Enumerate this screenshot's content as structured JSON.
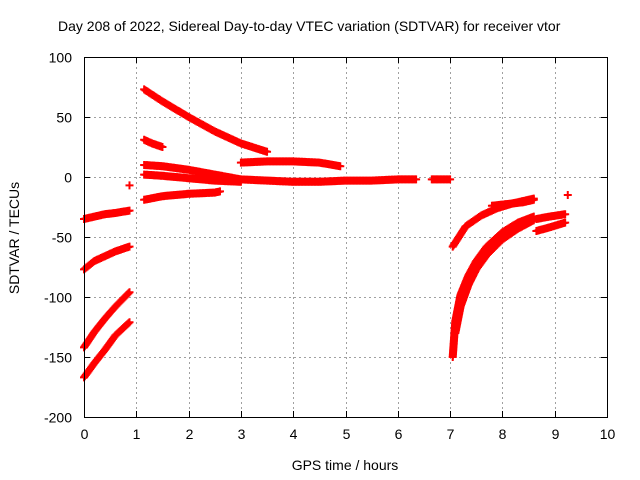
{
  "chart_data": {
    "type": "scatter",
    "title": "Day 208 of 2022, Sidereal Day-to-day VTEC variation (SDTVAR) for receiver vtor",
    "xlabel": "GPS time / hours",
    "ylabel": "SDTVAR / TECUs",
    "xlim": [
      0,
      10
    ],
    "ylim": [
      -200,
      100
    ],
    "xticks": [
      "0",
      "1",
      "2",
      "3",
      "4",
      "5",
      "6",
      "7",
      "8",
      "9",
      "10"
    ],
    "yticks": [
      "100",
      "50",
      "0",
      "-50",
      "-100",
      "-150",
      "-200"
    ],
    "grid": true,
    "marker": "+",
    "color": "#ff0000",
    "series": [
      {
        "x": [
          0.0,
          0.2,
          0.4,
          0.6,
          0.87
        ],
        "y": [
          -35,
          -33,
          -31,
          -30,
          -28
        ]
      },
      {
        "x": [
          0.0,
          0.2,
          0.4,
          0.6,
          0.87
        ],
        "y": [
          -77,
          -70,
          -66,
          -62,
          -58
        ]
      },
      {
        "x": [
          0.0,
          0.2,
          0.4,
          0.6,
          0.87
        ],
        "y": [
          -142,
          -129,
          -118,
          -108,
          -96
        ]
      },
      {
        "x": [
          0.0,
          0.2,
          0.4,
          0.6,
          0.87
        ],
        "y": [
          -167,
          -155,
          -144,
          -132,
          -121
        ]
      },
      {
        "x": [
          0.87
        ],
        "y": [
          -7
        ]
      },
      {
        "x": [
          1.15,
          1.5,
          2.0,
          2.5,
          3.0,
          3.5
        ],
        "y": [
          73,
          63,
          50,
          38,
          28,
          21
        ]
      },
      {
        "x": [
          1.15,
          1.3,
          1.5
        ],
        "y": [
          31,
          28,
          25
        ]
      },
      {
        "x": [
          1.15,
          1.5,
          2.0,
          2.5,
          3.0,
          3.5,
          4.0,
          4.5,
          5.0,
          5.5,
          6.0,
          6.35
        ],
        "y": [
          10,
          9,
          6,
          2,
          -2,
          -3,
          -4,
          -4,
          -3,
          -3,
          -2,
          -2
        ]
      },
      {
        "x": [
          1.15,
          1.5,
          2.0,
          2.5,
          3.0
        ],
        "y": [
          2,
          1,
          -1,
          -3,
          -4
        ]
      },
      {
        "x": [
          1.15,
          1.5,
          2.0,
          2.5,
          2.6
        ],
        "y": [
          -19,
          -16,
          -14,
          -13,
          -12
        ]
      },
      {
        "x": [
          3.0,
          3.5,
          4.0,
          4.5,
          4.9
        ],
        "y": [
          12,
          13,
          13,
          12,
          9
        ]
      },
      {
        "x": [
          6.65,
          6.8,
          7.0
        ],
        "y": [
          -2,
          -2,
          -2
        ]
      },
      {
        "x": [
          7.05,
          7.3,
          7.6,
          7.9,
          8.2,
          8.4,
          8.6
        ],
        "y": [
          -58,
          -41,
          -32,
          -26,
          -22,
          -20,
          -18
        ]
      },
      {
        "x": [
          7.05,
          7.1,
          7.2,
          7.35,
          7.5,
          7.7,
          8.0,
          8.3,
          8.6
        ],
        "y": [
          -150,
          -120,
          -98,
          -82,
          -70,
          -58,
          -46,
          -38,
          -33
        ]
      },
      {
        "x": [
          7.1,
          7.2,
          7.35,
          7.5,
          7.7,
          8.0,
          8.3,
          8.6
        ],
        "y": [
          -130,
          -108,
          -90,
          -77,
          -65,
          -52,
          -43,
          -36
        ]
      },
      {
        "x": [
          7.8,
          8.0,
          8.2,
          8.4,
          8.6
        ],
        "y": [
          -24,
          -23,
          -22,
          -21,
          -19
        ]
      },
      {
        "x": [
          8.65,
          8.9,
          9.2
        ],
        "y": [
          -45,
          -42,
          -38
        ]
      },
      {
        "x": [
          8.65,
          8.9,
          9.2
        ],
        "y": [
          -35,
          -33,
          -31
        ]
      },
      {
        "x": [
          9.25
        ],
        "y": [
          -15
        ]
      }
    ]
  }
}
